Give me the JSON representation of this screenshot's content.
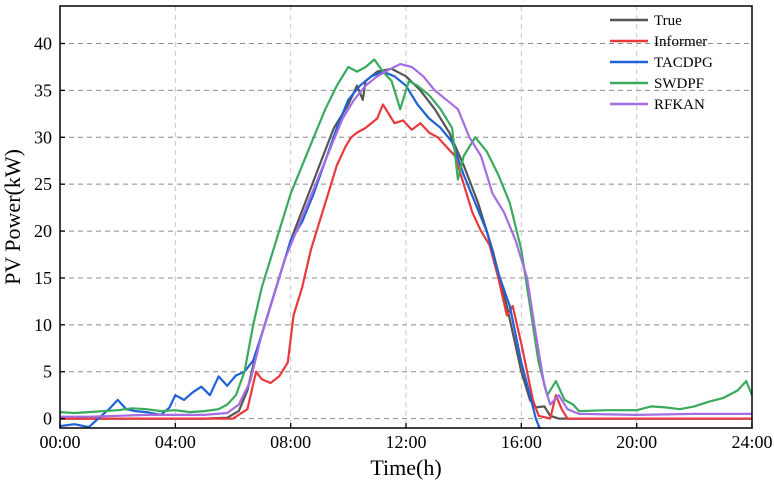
{
  "chart_data": {
    "type": "line",
    "title": "",
    "xlabel": "Time(h)",
    "ylabel": "PV Power(kW)",
    "xlim": [
      0,
      24
    ],
    "ylim": [
      -1,
      44
    ],
    "x_ticks": [
      0,
      4,
      8,
      12,
      16,
      20,
      24
    ],
    "x_tick_labels": [
      "00:00",
      "04:00",
      "08:00",
      "12:00",
      "16:00",
      "20:00",
      "24:00"
    ],
    "y_ticks": [
      0,
      5,
      10,
      15,
      20,
      25,
      30,
      35,
      40
    ],
    "y_tick_labels": [
      "0",
      "5",
      "10",
      "15",
      "20",
      "25",
      "30",
      "35",
      "40"
    ],
    "grid": true,
    "legend_position": "top-right",
    "series": [
      {
        "name": "True",
        "color": "#555555",
        "points": [
          [
            0,
            0
          ],
          [
            1,
            0
          ],
          [
            2,
            0
          ],
          [
            3,
            0
          ],
          [
            4,
            0
          ],
          [
            5,
            0
          ],
          [
            5.8,
            0.1
          ],
          [
            6.2,
            0.8
          ],
          [
            6.5,
            3
          ],
          [
            6.8,
            7
          ],
          [
            7.2,
            11
          ],
          [
            7.6,
            15
          ],
          [
            8,
            19
          ],
          [
            8.5,
            23
          ],
          [
            9,
            27
          ],
          [
            9.5,
            31
          ],
          [
            10,
            33.5
          ],
          [
            10.3,
            35.5
          ],
          [
            10.5,
            34
          ],
          [
            10.6,
            36
          ],
          [
            11,
            37
          ],
          [
            11.5,
            37.3
          ],
          [
            12,
            36.5
          ],
          [
            12.5,
            35
          ],
          [
            13,
            33
          ],
          [
            13.5,
            30.5
          ],
          [
            14,
            27
          ],
          [
            14.5,
            23
          ],
          [
            15,
            18
          ],
          [
            15.5,
            12
          ],
          [
            16,
            5
          ],
          [
            16.3,
            2
          ],
          [
            16.5,
            1.2
          ],
          [
            16.8,
            1.3
          ],
          [
            17,
            0.3
          ],
          [
            17.3,
            0
          ],
          [
            18,
            0
          ],
          [
            20,
            0
          ],
          [
            22,
            0
          ],
          [
            24,
            0
          ]
        ]
      },
      {
        "name": "Informer",
        "color": "#e8393d",
        "points": [
          [
            0,
            0
          ],
          [
            6,
            0
          ],
          [
            6.5,
            1
          ],
          [
            6.8,
            5
          ],
          [
            7,
            4.2
          ],
          [
            7.3,
            3.8
          ],
          [
            7.6,
            4.5
          ],
          [
            7.9,
            6
          ],
          [
            8.1,
            11
          ],
          [
            8.4,
            14
          ],
          [
            8.7,
            18
          ],
          [
            9,
            21
          ],
          [
            9.3,
            24
          ],
          [
            9.6,
            27
          ],
          [
            9.9,
            29
          ],
          [
            10.1,
            30
          ],
          [
            10.3,
            30.5
          ],
          [
            10.6,
            31
          ],
          [
            11,
            32
          ],
          [
            11.2,
            33.5
          ],
          [
            11.4,
            32.5
          ],
          [
            11.6,
            31.5
          ],
          [
            11.9,
            31.8
          ],
          [
            12.2,
            30.8
          ],
          [
            12.5,
            31.5
          ],
          [
            12.8,
            30.5
          ],
          [
            13.1,
            30
          ],
          [
            13.4,
            29
          ],
          [
            13.7,
            28
          ],
          [
            14,
            25
          ],
          [
            14.3,
            22
          ],
          [
            14.6,
            20
          ],
          [
            14.9,
            18.5
          ],
          [
            15.2,
            15
          ],
          [
            15.5,
            11
          ],
          [
            15.7,
            12
          ],
          [
            16,
            8
          ],
          [
            16.2,
            5
          ],
          [
            16.4,
            2
          ],
          [
            16.6,
            0.3
          ],
          [
            17,
            0
          ],
          [
            17.2,
            2.5
          ],
          [
            17.4,
            1
          ],
          [
            17.6,
            0
          ],
          [
            20,
            0
          ],
          [
            24,
            0
          ]
        ]
      },
      {
        "name": "TACDPG",
        "color": "#1f62d6",
        "points": [
          [
            0,
            -0.8
          ],
          [
            0.5,
            -0.6
          ],
          [
            1,
            -0.9
          ],
          [
            1.4,
            0.2
          ],
          [
            1.7,
            1
          ],
          [
            2,
            2
          ],
          [
            2.3,
            1
          ],
          [
            2.6,
            0.8
          ],
          [
            3,
            0.7
          ],
          [
            3.5,
            0.4
          ],
          [
            3.8,
            1.2
          ],
          [
            4,
            2.5
          ],
          [
            4.3,
            2
          ],
          [
            4.6,
            2.8
          ],
          [
            4.9,
            3.4
          ],
          [
            5.2,
            2.5
          ],
          [
            5.5,
            4.5
          ],
          [
            5.8,
            3.5
          ],
          [
            6.1,
            4.6
          ],
          [
            6.4,
            5
          ],
          [
            6.7,
            6.2
          ],
          [
            7,
            9
          ],
          [
            7.3,
            12
          ],
          [
            7.6,
            15
          ],
          [
            8,
            19
          ],
          [
            8.4,
            21
          ],
          [
            8.8,
            24
          ],
          [
            9.2,
            27.5
          ],
          [
            9.6,
            31
          ],
          [
            10,
            34
          ],
          [
            10.4,
            35.5
          ],
          [
            10.8,
            36.5
          ],
          [
            11.2,
            37
          ],
          [
            11.6,
            36.5
          ],
          [
            12,
            35.5
          ],
          [
            12.4,
            33.5
          ],
          [
            12.8,
            32
          ],
          [
            13.2,
            31
          ],
          [
            13.6,
            29.5
          ],
          [
            14,
            26
          ],
          [
            14.4,
            23
          ],
          [
            14.8,
            20
          ],
          [
            15.2,
            15.5
          ],
          [
            15.6,
            12
          ],
          [
            16,
            6
          ],
          [
            16.3,
            2.5
          ],
          [
            16.5,
            0
          ],
          [
            16.7,
            -1.5
          ]
        ]
      },
      {
        "name": "SWDPF",
        "color": "#3aaa5c",
        "points": [
          [
            0,
            0.7
          ],
          [
            0.5,
            0.6
          ],
          [
            1,
            0.7
          ],
          [
            1.5,
            0.8
          ],
          [
            2,
            0.9
          ],
          [
            2.5,
            1.1
          ],
          [
            3,
            1
          ],
          [
            3.5,
            0.8
          ],
          [
            4,
            0.9
          ],
          [
            4.5,
            0.7
          ],
          [
            5,
            0.8
          ],
          [
            5.5,
            1
          ],
          [
            5.8,
            1.5
          ],
          [
            6.1,
            2.5
          ],
          [
            6.4,
            5
          ],
          [
            6.7,
            10
          ],
          [
            7,
            14
          ],
          [
            7.3,
            17
          ],
          [
            7.6,
            20
          ],
          [
            8,
            24
          ],
          [
            8.4,
            27
          ],
          [
            8.8,
            30
          ],
          [
            9.2,
            33
          ],
          [
            9.6,
            35.5
          ],
          [
            10,
            37.5
          ],
          [
            10.3,
            37
          ],
          [
            10.6,
            37.5
          ],
          [
            10.9,
            38.3
          ],
          [
            11.2,
            37
          ],
          [
            11.5,
            36
          ],
          [
            11.8,
            33
          ],
          [
            12.1,
            36
          ],
          [
            12.4,
            35.5
          ],
          [
            12.8,
            34.5
          ],
          [
            13.2,
            33
          ],
          [
            13.6,
            31
          ],
          [
            13.8,
            25.5
          ],
          [
            14,
            28
          ],
          [
            14.4,
            30
          ],
          [
            14.8,
            28.5
          ],
          [
            15.2,
            26
          ],
          [
            15.6,
            23
          ],
          [
            16,
            18
          ],
          [
            16.3,
            12
          ],
          [
            16.6,
            6
          ],
          [
            16.9,
            2.5
          ],
          [
            17.2,
            4
          ],
          [
            17.5,
            2
          ],
          [
            17.8,
            1.5
          ],
          [
            18,
            0.8
          ],
          [
            19,
            0.9
          ],
          [
            20,
            0.9
          ],
          [
            20.5,
            1.3
          ],
          [
            21,
            1.2
          ],
          [
            21.5,
            1
          ],
          [
            22,
            1.3
          ],
          [
            22.5,
            1.8
          ],
          [
            23,
            2.2
          ],
          [
            23.5,
            3
          ],
          [
            23.8,
            4
          ],
          [
            24,
            2.5
          ]
        ]
      },
      {
        "name": "RFKAN",
        "color": "#a56de2",
        "points": [
          [
            0,
            0.2
          ],
          [
            1,
            0.2
          ],
          [
            2,
            0.3
          ],
          [
            3,
            0.4
          ],
          [
            4,
            0.4
          ],
          [
            5,
            0.4
          ],
          [
            5.8,
            0.6
          ],
          [
            6.2,
            1.5
          ],
          [
            6.6,
            4
          ],
          [
            7,
            9
          ],
          [
            7.4,
            13
          ],
          [
            7.8,
            17
          ],
          [
            8.2,
            20
          ],
          [
            8.6,
            23
          ],
          [
            9,
            26
          ],
          [
            9.4,
            29
          ],
          [
            9.8,
            32
          ],
          [
            10.2,
            34
          ],
          [
            10.6,
            35.5
          ],
          [
            11,
            36.5
          ],
          [
            11.4,
            37.2
          ],
          [
            11.8,
            37.8
          ],
          [
            12.2,
            37.5
          ],
          [
            12.6,
            36.5
          ],
          [
            13,
            35
          ],
          [
            13.4,
            34
          ],
          [
            13.8,
            33
          ],
          [
            14.2,
            30
          ],
          [
            14.6,
            28
          ],
          [
            15,
            24
          ],
          [
            15.4,
            22
          ],
          [
            15.8,
            19
          ],
          [
            16.2,
            15
          ],
          [
            16.5,
            9
          ],
          [
            16.8,
            3.5
          ],
          [
            17,
            1.5
          ],
          [
            17.3,
            2.5
          ],
          [
            17.6,
            1
          ],
          [
            18,
            0.5
          ],
          [
            20,
            0.4
          ],
          [
            22,
            0.5
          ],
          [
            24,
            0.5
          ]
        ]
      }
    ]
  }
}
